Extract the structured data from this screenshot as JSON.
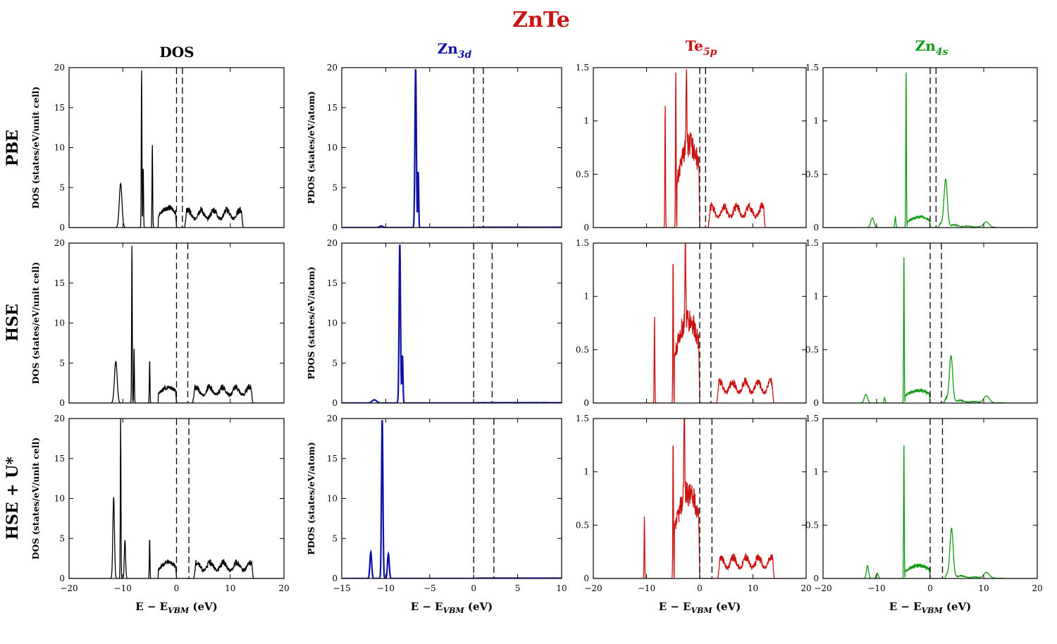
{
  "title": "ZnTe",
  "column_headers": [
    {
      "main": "DOS",
      "sub": ""
    },
    {
      "main": "Zn",
      "sub": "3d"
    },
    {
      "main": "Te",
      "sub": "5p"
    },
    {
      "main": "Zn",
      "sub": "4s"
    }
  ],
  "row_labels": [
    "PBE",
    "HSE",
    "HSE + U*"
  ],
  "colors": {
    "title": "#cc1111",
    "dos": "#000000",
    "zn3d": "#1111aa",
    "te5p": "#cc1111",
    "zn4s": "#119911"
  },
  "chart_data": [
    {
      "type": "line",
      "id": "dos",
      "ylabel": "DOS (states/eV/unit cell)",
      "xlabel": "E − E_VBM (eV)",
      "xlim": [
        -20,
        20
      ],
      "ylim": [
        0,
        20
      ],
      "xticks": [
        -20,
        -10,
        0,
        10,
        20
      ],
      "yticks": [
        0,
        5,
        10,
        15,
        20
      ],
      "series": [
        {
          "name": "PBE",
          "vbm": 0.0,
          "cbm": 1.1,
          "peaks": [
            [
              -10.4,
              5.5,
              0.25
            ],
            [
              -6.5,
              20,
              0.06
            ],
            [
              -6.2,
              7.8,
              0.06
            ],
            [
              -4.5,
              10.5,
              0.06
            ]
          ],
          "valence": [
            -3.4,
            2.5
          ],
          "conduction": [
            1.5,
            12.4,
            2.2
          ]
        },
        {
          "name": "HSE",
          "vbm": 0.0,
          "cbm": 2.1,
          "peaks": [
            [
              -11.3,
              5.2,
              0.25
            ],
            [
              -8.3,
              20,
              0.06
            ],
            [
              -7.9,
              6.9,
              0.06
            ],
            [
              -5.0,
              5.5,
              0.06
            ]
          ],
          "valence": [
            -3.4,
            2.0
          ],
          "conduction": [
            3.0,
            14.2,
            2.0
          ]
        },
        {
          "name": "HSE + U*",
          "vbm": 0.0,
          "cbm": 2.3,
          "peaks": [
            [
              -11.7,
              10.2,
              0.15
            ],
            [
              -10.4,
              20,
              0.06
            ],
            [
              -9.6,
              4.8,
              0.12
            ],
            [
              -5.0,
              5.1,
              0.06
            ]
          ],
          "valence": [
            -3.4,
            2.0
          ],
          "conduction": [
            3.2,
            14.3,
            2.0
          ]
        }
      ]
    },
    {
      "type": "line",
      "id": "zn3d",
      "ylabel": "PDOS (states/eV/atom)",
      "xlabel": "E − E_VBM (eV)",
      "xlim": [
        -15,
        10
      ],
      "ylim": [
        0,
        20
      ],
      "xticks": [
        -15,
        -10,
        -5,
        0,
        5,
        10
      ],
      "yticks": [
        0,
        5,
        10,
        15,
        20
      ],
      "series": [
        {
          "name": "PBE",
          "vbm": 0.0,
          "cbm": 1.1,
          "peaks": [
            [
              -6.6,
              20,
              0.08
            ],
            [
              -6.3,
              7.0,
              0.05
            ],
            [
              -10.5,
              0.2,
              0.2
            ]
          ]
        },
        {
          "name": "HSE",
          "vbm": 0.0,
          "cbm": 2.1,
          "peaks": [
            [
              -8.4,
              20,
              0.08
            ],
            [
              -8.1,
              6.0,
              0.06
            ],
            [
              -11.3,
              0.4,
              0.25
            ]
          ]
        },
        {
          "name": "HSE + U*",
          "vbm": 0.0,
          "cbm": 2.3,
          "peaks": [
            [
              -11.7,
              3.3,
              0.1
            ],
            [
              -10.4,
              20,
              0.08
            ],
            [
              -9.7,
              3.1,
              0.1
            ]
          ]
        }
      ]
    },
    {
      "type": "line",
      "id": "te5p",
      "ylabel": "",
      "xlabel": "E − E_VBM (eV)",
      "xlim": [
        -20,
        20
      ],
      "ylim": [
        0,
        1.5
      ],
      "xticks": [
        -20,
        -10,
        0,
        10,
        20
      ],
      "yticks": [
        0,
        0.5,
        1.0,
        1.5
      ],
      "series": [
        {
          "name": "PBE",
          "vbm": 0.0,
          "cbm": 1.1,
          "peaks": [
            [
              -6.5,
              1.16,
              0.06
            ],
            [
              -4.5,
              1.48,
              0.06
            ],
            [
              -2.5,
              0.77,
              0.08
            ]
          ],
          "valence": [
            -4.3,
            0.78
          ],
          "conduction": [
            1.6,
            12.3,
            0.2
          ]
        },
        {
          "name": "HSE",
          "vbm": 0.0,
          "cbm": 2.1,
          "peaks": [
            [
              -8.5,
              0.82,
              0.06
            ],
            [
              -5.0,
              1.39,
              0.06
            ],
            [
              -2.7,
              0.75,
              0.08
            ]
          ],
          "valence": [
            -4.8,
            0.78
          ],
          "conduction": [
            3.2,
            13.9,
            0.2
          ]
        },
        {
          "name": "HSE + U*",
          "vbm": 0.0,
          "cbm": 2.3,
          "peaks": [
            [
              -10.4,
              0.58,
              0.06
            ],
            [
              -5.0,
              1.33,
              0.06
            ],
            [
              -2.9,
              0.98,
              0.08
            ]
          ],
          "valence": [
            -4.8,
            0.8
          ],
          "conduction": [
            3.4,
            14.0,
            0.2
          ]
        }
      ]
    },
    {
      "type": "line",
      "id": "zn4s",
      "ylabel": "",
      "xlabel": "E − E_VBM (eV)",
      "xlim": [
        -20,
        20
      ],
      "ylim": [
        0,
        1.5
      ],
      "xticks": [
        -20,
        -10,
        0,
        10,
        20
      ],
      "yticks": [
        0,
        0.5,
        1.0,
        1.5
      ],
      "series": [
        {
          "name": "PBE",
          "vbm": 0.0,
          "cbm": 1.1,
          "peaks": [
            [
              -10.8,
              0.09,
              0.3
            ],
            [
              -6.5,
              0.1,
              0.1
            ],
            [
              -4.5,
              1.48,
              0.06
            ],
            [
              2.9,
              0.43,
              0.3
            ],
            [
              10.5,
              0.05,
              0.5
            ]
          ],
          "valence": [
            -4.3,
            0.1
          ],
          "conduction": [
            1.5,
            12.7,
            0.05
          ]
        },
        {
          "name": "HSE",
          "vbm": 0.0,
          "cbm": 2.1,
          "peaks": [
            [
              -12.0,
              0.08,
              0.3
            ],
            [
              -8.5,
              0.05,
              0.1
            ],
            [
              -4.9,
              1.39,
              0.06
            ],
            [
              3.9,
              0.42,
              0.3
            ],
            [
              10.5,
              0.06,
              0.5
            ]
          ],
          "valence": [
            -4.7,
            0.12
          ],
          "conduction": [
            2.5,
            14.2,
            0.05
          ]
        },
        {
          "name": "HSE + U*",
          "vbm": 0.0,
          "cbm": 2.3,
          "peaks": [
            [
              -11.7,
              0.12,
              0.2
            ],
            [
              -9.9,
              0.05,
              0.2
            ],
            [
              -4.9,
              1.27,
              0.06
            ],
            [
              4.0,
              0.44,
              0.3
            ],
            [
              10.5,
              0.05,
              0.5
            ]
          ],
          "valence": [
            -4.7,
            0.12
          ],
          "conduction": [
            2.7,
            14.3,
            0.05
          ]
        }
      ]
    }
  ]
}
